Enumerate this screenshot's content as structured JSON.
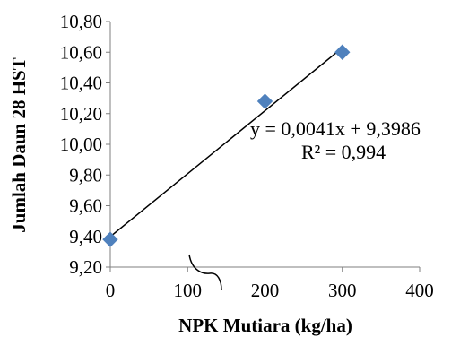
{
  "chart_data": {
    "type": "scatter",
    "xlabel": "NPK Mutiara (kg/ha)",
    "ylabel": "Jumlah Daun 28 HST",
    "xlim": [
      0,
      400
    ],
    "ylim": [
      9.2,
      10.8
    ],
    "x_ticks": [
      0,
      100,
      200,
      300,
      400
    ],
    "x_tick_labels": [
      "0",
      "100",
      "200",
      "300",
      "400"
    ],
    "y_ticks": [
      9.2,
      9.4,
      9.6,
      9.8,
      10.0,
      10.2,
      10.4,
      10.6,
      10.8
    ],
    "y_tick_labels": [
      "9,20",
      "9,40",
      "9,60",
      "9,80",
      "10,00",
      "10,20",
      "10,40",
      "10,60",
      "10,80"
    ],
    "grid": false,
    "points": [
      {
        "x": 0,
        "y": 9.38
      },
      {
        "x": 200,
        "y": 10.28
      },
      {
        "x": 300,
        "y": 10.6
      }
    ],
    "marker": "diamond",
    "marker_color": "#4f81bd",
    "trendline": {
      "type": "linear",
      "slope": 0.0041,
      "intercept": 9.3986,
      "x_range": [
        0,
        300
      ],
      "color": "#000000"
    },
    "annotations": {
      "equation": "y = 0,0041x + 9,3986",
      "r_squared": "R² = 0,994"
    }
  }
}
